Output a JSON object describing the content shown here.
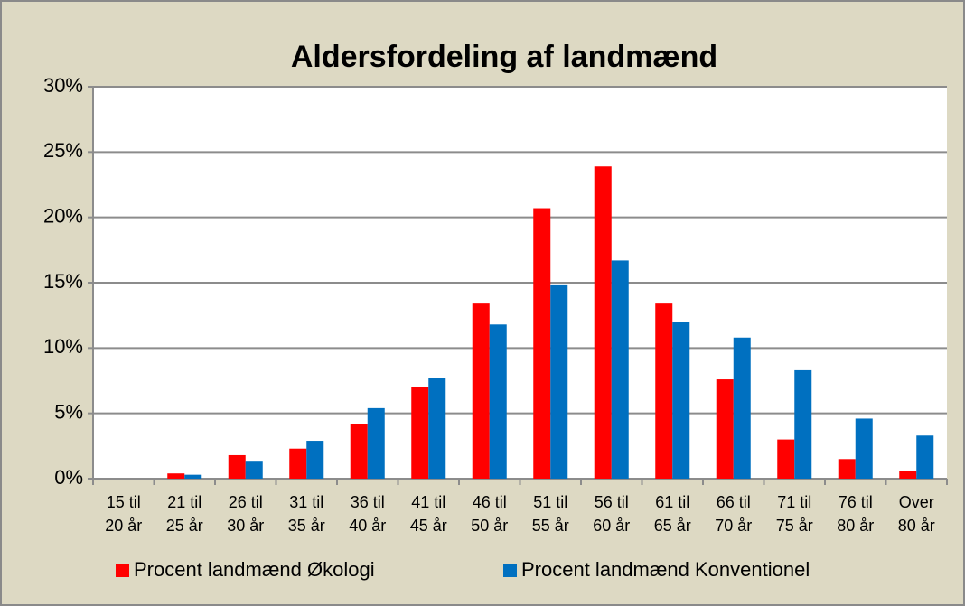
{
  "chart_data": {
    "type": "bar",
    "title": "Aldersfordeling af landmænd",
    "categories": [
      [
        "15 til",
        "20 år"
      ],
      [
        "21 til",
        "25 år"
      ],
      [
        "26 til",
        "30 år"
      ],
      [
        "31 til",
        "35 år"
      ],
      [
        "36 til",
        "40 år"
      ],
      [
        "41 til",
        "45 år"
      ],
      [
        "46 til",
        "50 år"
      ],
      [
        "51 til",
        "55 år"
      ],
      [
        "56 til",
        "60 år"
      ],
      [
        "61 til",
        "65 år"
      ],
      [
        "66 til",
        "70 år"
      ],
      [
        "71 til",
        "75 år"
      ],
      [
        "76 til",
        "80 år"
      ],
      [
        "Over",
        "80 år"
      ]
    ],
    "series": [
      {
        "name": "Procent landmænd Økologi",
        "color": "#ff0000",
        "values": [
          0,
          0.4,
          1.8,
          2.3,
          4.2,
          7.0,
          13.4,
          20.7,
          23.9,
          13.4,
          7.6,
          3.0,
          1.5,
          0.6
        ]
      },
      {
        "name": "Procent landmænd Konventionel",
        "color": "#0070c0",
        "values": [
          0,
          0.3,
          1.3,
          2.9,
          5.4,
          7.7,
          11.8,
          14.8,
          16.7,
          12.0,
          10.8,
          8.3,
          4.6,
          3.3
        ]
      }
    ],
    "ylim": [
      0,
      30
    ],
    "yticks": [
      {
        "value": 0,
        "label": "0%"
      },
      {
        "value": 5,
        "label": "5%"
      },
      {
        "value": 10,
        "label": "10%"
      },
      {
        "value": 15,
        "label": "15%"
      },
      {
        "value": 20,
        "label": "20%"
      },
      {
        "value": 25,
        "label": "25%"
      },
      {
        "value": 30,
        "label": "30%"
      }
    ],
    "grid": true,
    "legend": "bottom"
  }
}
